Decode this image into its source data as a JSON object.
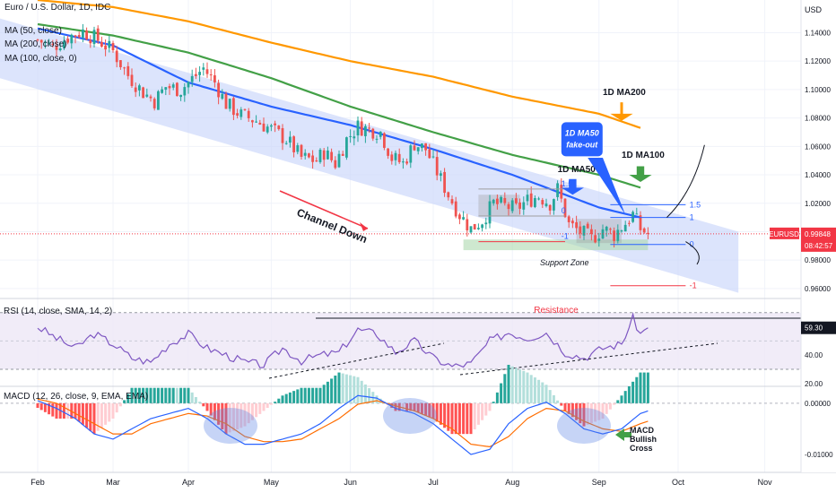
{
  "symbol_title": "Euro / U.S. Dollar, 1D, IDC",
  "legend": [
    "MA (50, close)",
    "MA (200, close)",
    "MA (100, close, 0)"
  ],
  "currency_label": "USD",
  "price_badge": {
    "symbol": "EURUSD",
    "price": "0.99848",
    "countdown": "08:42:57"
  },
  "rsi_title": "RSI (14, close, SMA, 14, 2)",
  "rsi_value_badge": "59.30",
  "macd_title": "MACD (12, 26, close, 9, EMA, EMA)",
  "annotations": {
    "ma200": "1D MA200",
    "ma100": "1D MA100",
    "ma50": "1D MA50",
    "fakeout": [
      "1D MA50",
      "fake-out"
    ],
    "channel": "Channel Down",
    "support": "Support Zone",
    "resistance": "Resistance",
    "macd_cross": [
      "MACD",
      "Bullish",
      "Cross"
    ],
    "fib_left": [
      "1.5",
      "0",
      "-1"
    ],
    "fib_right": [
      "1.5",
      "1",
      "0",
      "-1"
    ]
  },
  "colors": {
    "bull": "#26a69a",
    "bear": "#ef5350",
    "ma50": "#2962ff",
    "ma100": "#43a047",
    "ma200": "#ff9800",
    "channel": "#c9d6fb",
    "rsi_line": "#7e57c2",
    "macd_line": "#2962ff",
    "signal_line": "#ff6d00",
    "badge": "#f23645",
    "grid": "#f0f3fa",
    "support": "#a5d6a7"
  },
  "chart_data": [
    {
      "type": "candlestick",
      "title": "Euro / U.S. Dollar, 1D, IDC",
      "x_ticks": [
        "Feb",
        "Mar",
        "Apr",
        "May",
        "Jun",
        "Jul",
        "Aug",
        "Sep",
        "Oct",
        "Nov"
      ],
      "y_ticks": [
        0.96,
        0.98,
        1.0,
        1.02,
        1.04,
        1.06,
        1.08,
        1.1,
        1.12,
        1.14
      ],
      "y_tick_labels": [
        "0.96000",
        "0.98000",
        "1.00000",
        "1.02000",
        "1.04000",
        "1.06000",
        "1.08000",
        "1.10000",
        "1.12000",
        "1.14000"
      ],
      "ylim": [
        0.953,
        1.163
      ],
      "month_start_index": [
        0,
        20,
        40,
        62,
        83,
        105,
        126,
        149,
        170,
        193
      ],
      "last_price": 0.99848,
      "series_close_anchors": [
        [
          0,
          1.135
        ],
        [
          4,
          1.13
        ],
        [
          8,
          1.137
        ],
        [
          12,
          1.141
        ],
        [
          16,
          1.135
        ],
        [
          20,
          1.127
        ],
        [
          24,
          1.11
        ],
        [
          28,
          1.098
        ],
        [
          31,
          1.092
        ],
        [
          34,
          1.102
        ],
        [
          38,
          1.1
        ],
        [
          40,
          1.105
        ],
        [
          44,
          1.115
        ],
        [
          47,
          1.105
        ],
        [
          50,
          1.09
        ],
        [
          54,
          1.082
        ],
        [
          58,
          1.078
        ],
        [
          62,
          1.072
        ],
        [
          66,
          1.065
        ],
        [
          70,
          1.052
        ],
        [
          74,
          1.05
        ],
        [
          76,
          1.056
        ],
        [
          79,
          1.048
        ],
        [
          82,
          1.065
        ],
        [
          85,
          1.074
        ],
        [
          88,
          1.072
        ],
        [
          91,
          1.07
        ],
        [
          94,
          1.052
        ],
        [
          97,
          1.048
        ],
        [
          100,
          1.062
        ],
        [
          103,
          1.058
        ],
        [
          106,
          1.042
        ],
        [
          109,
          1.026
        ],
        [
          112,
          1.012
        ],
        [
          115,
          1.002
        ],
        [
          118,
          1.008
        ],
        [
          121,
          1.02
        ],
        [
          124,
          1.018
        ],
        [
          127,
          1.016
        ],
        [
          130,
          1.022
        ],
        [
          133,
          1.025
        ],
        [
          136,
          1.02
        ],
        [
          138,
          1.03
        ],
        [
          141,
          1.005
        ],
        [
          144,
          1.0
        ],
        [
          147,
          0.995
        ],
        [
          150,
          1.002
        ],
        [
          153,
          0.998
        ],
        [
          156,
          1.006
        ],
        [
          158,
          1.012
        ],
        [
          160,
          1.002
        ],
        [
          162,
          0.99848
        ]
      ],
      "moving_averages": {
        "MA50": [
          [
            0,
            1.143
          ],
          [
            20,
            1.131
          ],
          [
            40,
            1.105
          ],
          [
            62,
            1.088
          ],
          [
            83,
            1.075
          ],
          [
            105,
            1.058
          ],
          [
            126,
            1.04
          ],
          [
            149,
            1.017
          ],
          [
            160,
            1.01
          ]
        ],
        "MA100": [
          [
            0,
            1.146
          ],
          [
            20,
            1.138
          ],
          [
            40,
            1.126
          ],
          [
            62,
            1.108
          ],
          [
            83,
            1.088
          ],
          [
            105,
            1.07
          ],
          [
            126,
            1.054
          ],
          [
            149,
            1.04
          ],
          [
            160,
            1.031
          ]
        ],
        "MA200": [
          [
            0,
            1.163
          ],
          [
            20,
            1.158
          ],
          [
            40,
            1.148
          ],
          [
            62,
            1.133
          ],
          [
            83,
            1.12
          ],
          [
            105,
            1.109
          ],
          [
            126,
            1.095
          ],
          [
            149,
            1.083
          ],
          [
            160,
            1.073
          ]
        ]
      }
    },
    {
      "type": "line",
      "title": "RSI (14, close, SMA, 14, 2)",
      "y_ticks": [
        20,
        40,
        59.3
      ],
      "y_tick_labels": [
        "20.00",
        "40.00",
        "59.30"
      ],
      "ylim": [
        18,
        80
      ],
      "bands": [
        30,
        70
      ],
      "series_anchors": [
        [
          0,
          60
        ],
        [
          5,
          52
        ],
        [
          10,
          45
        ],
        [
          15,
          55
        ],
        [
          20,
          48
        ],
        [
          25,
          38
        ],
        [
          30,
          35
        ],
        [
          35,
          48
        ],
        [
          40,
          55
        ],
        [
          45,
          45
        ],
        [
          50,
          40
        ],
        [
          55,
          35
        ],
        [
          60,
          33
        ],
        [
          65,
          45
        ],
        [
          70,
          36
        ],
        [
          75,
          40
        ],
        [
          80,
          42
        ],
        [
          85,
          58
        ],
        [
          90,
          55
        ],
        [
          95,
          42
        ],
        [
          100,
          50
        ],
        [
          105,
          38
        ],
        [
          110,
          32
        ],
        [
          115,
          34
        ],
        [
          120,
          50
        ],
        [
          125,
          56
        ],
        [
          130,
          52
        ],
        [
          135,
          56
        ],
        [
          140,
          42
        ],
        [
          145,
          38
        ],
        [
          150,
          45
        ],
        [
          155,
          48
        ],
        [
          158,
          66
        ],
        [
          160,
          55
        ],
        [
          162,
          59.3
        ]
      ]
    },
    {
      "type": "line",
      "title": "MACD (12, 26, close, 9, EMA, EMA)",
      "y_ticks": [
        0.0,
        -0.01
      ],
      "y_tick_labels": [
        "0.00000",
        "-0.01000"
      ],
      "ylim": [
        -0.0135,
        0.0033
      ],
      "macd_anchors": [
        [
          0,
          0.0005
        ],
        [
          5,
          -0.001
        ],
        [
          10,
          -0.003
        ],
        [
          15,
          -0.006
        ],
        [
          20,
          -0.007
        ],
        [
          25,
          -0.005
        ],
        [
          30,
          -0.003
        ],
        [
          35,
          -0.002
        ],
        [
          40,
          -0.001
        ],
        [
          45,
          -0.003
        ],
        [
          50,
          -0.006
        ],
        [
          55,
          -0.008
        ],
        [
          60,
          -0.008
        ],
        [
          65,
          -0.007
        ],
        [
          70,
          -0.006
        ],
        [
          75,
          -0.004
        ],
        [
          80,
          -0.001
        ],
        [
          85,
          0.0015
        ],
        [
          90,
          0.001
        ],
        [
          95,
          -0.001
        ],
        [
          100,
          -0.002
        ],
        [
          105,
          -0.004
        ],
        [
          110,
          -0.007
        ],
        [
          115,
          -0.01
        ],
        [
          120,
          -0.009
        ],
        [
          125,
          -0.004
        ],
        [
          130,
          -0.001
        ],
        [
          135,
          0.0002
        ],
        [
          140,
          -0.002
        ],
        [
          145,
          -0.005
        ],
        [
          150,
          -0.006
        ],
        [
          155,
          -0.005
        ],
        [
          160,
          -0.002
        ],
        [
          162,
          -0.0015
        ]
      ],
      "signal_anchors": [
        [
          0,
          0.0008
        ],
        [
          5,
          0.0
        ],
        [
          10,
          -0.002
        ],
        [
          15,
          -0.004
        ],
        [
          20,
          -0.006
        ],
        [
          25,
          -0.006
        ],
        [
          30,
          -0.004
        ],
        [
          35,
          -0.003
        ],
        [
          40,
          -0.002
        ],
        [
          45,
          -0.0025
        ],
        [
          50,
          -0.004
        ],
        [
          55,
          -0.0065
        ],
        [
          60,
          -0.0075
        ],
        [
          65,
          -0.0075
        ],
        [
          70,
          -0.007
        ],
        [
          75,
          -0.005
        ],
        [
          80,
          -0.003
        ],
        [
          85,
          -0.0002
        ],
        [
          90,
          0.0005
        ],
        [
          95,
          -0.0005
        ],
        [
          100,
          -0.0015
        ],
        [
          105,
          -0.003
        ],
        [
          110,
          -0.005
        ],
        [
          115,
          -0.008
        ],
        [
          120,
          -0.0085
        ],
        [
          125,
          -0.0065
        ],
        [
          130,
          -0.003
        ],
        [
          135,
          -0.001
        ],
        [
          140,
          -0.0015
        ],
        [
          145,
          -0.0035
        ],
        [
          150,
          -0.005
        ],
        [
          155,
          -0.0055
        ],
        [
          160,
          -0.004
        ],
        [
          162,
          -0.0035
        ]
      ]
    }
  ]
}
